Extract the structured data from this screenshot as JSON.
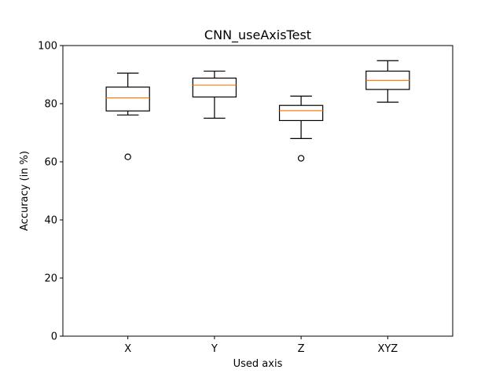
{
  "chart_data": {
    "type": "box",
    "title": "CNN_useAxisTest",
    "xlabel": "Used axis",
    "ylabel": "Accuracy (in %)",
    "ylim": [
      0,
      100
    ],
    "yticks": [
      0,
      20,
      40,
      60,
      80,
      100
    ],
    "grid": false,
    "categories": [
      "X",
      "Y",
      "Z",
      "XYZ"
    ],
    "boxes": [
      {
        "label": "X",
        "whisker_low": 76.1,
        "q1": 77.5,
        "median": 82.0,
        "q3": 85.7,
        "whisker_high": 90.5,
        "outliers": [
          61.7
        ]
      },
      {
        "label": "Y",
        "whisker_low": 75.0,
        "q1": 82.3,
        "median": 86.4,
        "q3": 88.8,
        "whisker_high": 91.2,
        "outliers": []
      },
      {
        "label": "Z",
        "whisker_low": 68.0,
        "q1": 74.2,
        "median": 77.6,
        "q3": 79.4,
        "whisker_high": 82.6,
        "outliers": [
          61.2
        ]
      },
      {
        "label": "XYZ",
        "whisker_low": 80.5,
        "q1": 84.9,
        "median": 88.0,
        "q3": 91.2,
        "whisker_high": 94.8,
        "outliers": []
      }
    ],
    "colors": {
      "box": "#000000",
      "median": "#ff7f0e",
      "outlier": "#000000",
      "background": "#ffffff"
    }
  }
}
